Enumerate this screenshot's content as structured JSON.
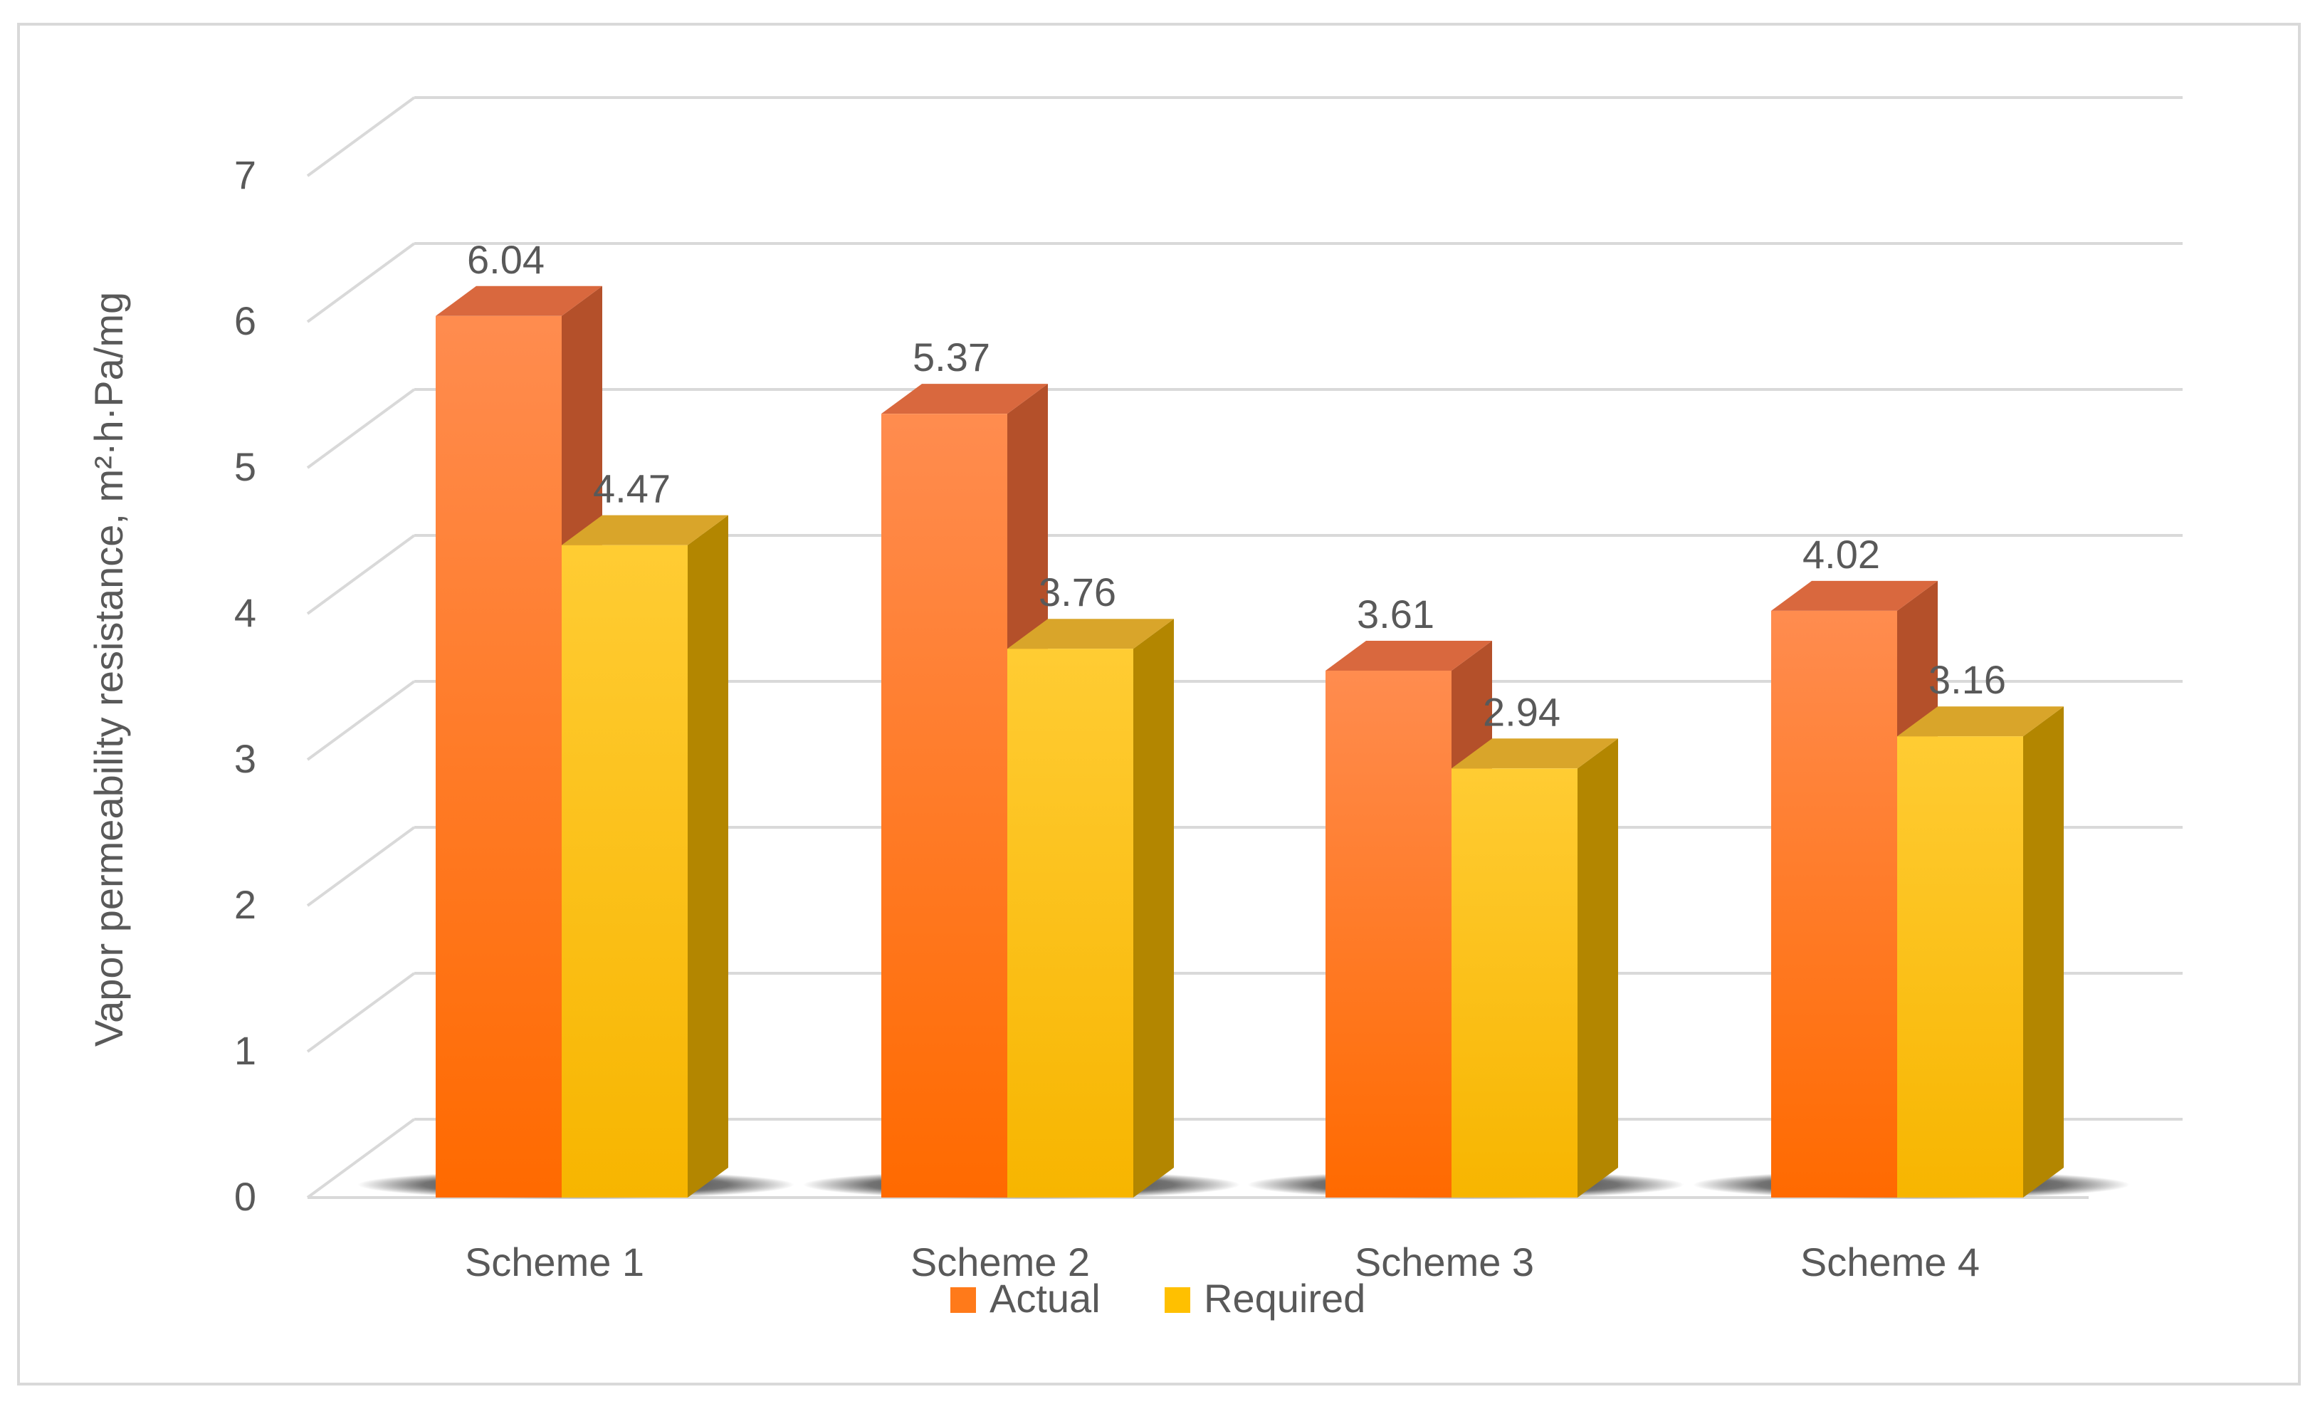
{
  "chart_data": {
    "type": "bar",
    "style": "3d-clustered-column",
    "categories": [
      "Scheme 1",
      "Scheme 2",
      "Scheme 3",
      "Scheme 4"
    ],
    "series": [
      {
        "name": "Actual",
        "values": [
          6.04,
          5.37,
          3.61,
          4.02
        ],
        "color": "#ff7a1a"
      },
      {
        "name": "Required",
        "values": [
          4.47,
          3.76,
          2.94,
          3.16
        ],
        "color": "#ffc000"
      }
    ],
    "ylabel": "Vapor permeability resistance, m²·h·Pa/mg",
    "xlabel": "",
    "ylim": [
      0,
      7
    ],
    "yticks": [
      0,
      1,
      2,
      3,
      4,
      5,
      6,
      7
    ],
    "grid": true,
    "legend_position": "bottom",
    "colors": {
      "gridline": "#d9d9d9",
      "text": "#595959",
      "frame": "#d9d9d9"
    }
  }
}
